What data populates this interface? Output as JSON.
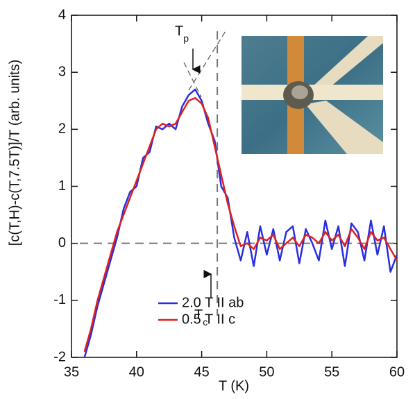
{
  "chart_data": {
    "type": "line",
    "x_label": "T (K)",
    "y_label": "[c(T,H)-c(T,7.5T)]/T (arb. units)",
    "x": [
      36,
      36.5,
      37,
      37.5,
      38,
      38.5,
      39,
      39.5,
      40,
      40.5,
      41,
      41.5,
      42,
      42.5,
      43,
      43.5,
      44,
      44.5,
      45,
      45.5,
      46,
      46.5,
      47,
      47.5,
      48,
      48.5,
      49,
      49.5,
      50,
      50.5,
      51,
      51.5,
      52,
      52.5,
      53,
      53.5,
      54,
      54.5,
      55,
      55.5,
      56,
      56.5,
      57,
      57.5,
      58,
      58.5,
      59,
      59.5,
      60
    ],
    "series": [
      {
        "name": "2.0 T II ab",
        "color": "#2a2ee0",
        "values": [
          -2.0,
          -1.6,
          -1.1,
          -0.7,
          -0.3,
          0.1,
          0.6,
          0.9,
          1.0,
          1.5,
          1.6,
          2.05,
          2.0,
          2.1,
          2.0,
          2.4,
          2.6,
          2.7,
          2.5,
          2.1,
          1.8,
          1.0,
          0.8,
          0.1,
          -0.3,
          0.2,
          -0.4,
          0.3,
          -0.2,
          0.25,
          -0.3,
          0.2,
          0.3,
          -0.35,
          0.25,
          0.0,
          -0.3,
          0.4,
          -0.1,
          0.3,
          -0.4,
          0.35,
          0.2,
          -0.3,
          0.4,
          -0.2,
          0.3,
          -0.5,
          -0.2
        ]
      },
      {
        "name": "0.5 T II c",
        "color": "#e0201e",
        "values": [
          -1.9,
          -1.5,
          -1.0,
          -0.6,
          -0.2,
          0.2,
          0.5,
          0.8,
          1.1,
          1.4,
          1.7,
          2.0,
          2.1,
          2.05,
          2.1,
          2.3,
          2.5,
          2.55,
          2.45,
          2.2,
          1.7,
          1.2,
          0.7,
          0.3,
          -0.05,
          0.0,
          -0.1,
          0.1,
          0.05,
          0.15,
          -0.1,
          0.0,
          0.1,
          -0.05,
          0.15,
          0.1,
          0.0,
          0.2,
          0.05,
          0.15,
          -0.05,
          0.25,
          0.1,
          -0.1,
          0.2,
          0.05,
          0.1,
          -0.1,
          -0.3
        ]
      }
    ],
    "xlim": [
      35,
      60
    ],
    "xticks": [
      35,
      40,
      45,
      50,
      55,
      60
    ],
    "ylim": [
      -2,
      4
    ],
    "yticks": [
      -2,
      -1,
      0,
      1,
      2,
      3,
      4
    ],
    "hlines": [
      0
    ],
    "vlines": [
      46.2
    ],
    "annotations": [
      {
        "text": "T",
        "sub": "p"
      },
      {
        "text": "T",
        "sub": "c"
      }
    ],
    "legend": "lower left"
  }
}
